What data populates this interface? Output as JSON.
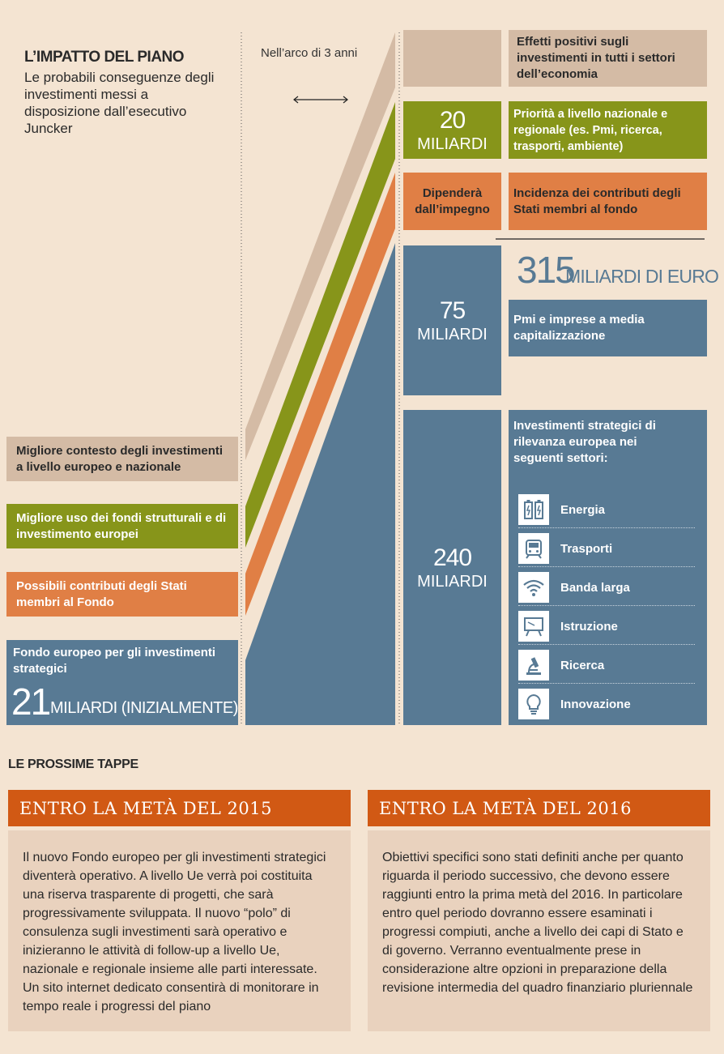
{
  "header": {
    "title": "L’IMPATTO DEL PIANO",
    "subtitle": "Le probabili conseguenze degli investimenti messi a disposizione dall’esecutivo Juncker",
    "timespan": "Nell’arco di 3 anni"
  },
  "left_boxes": {
    "tan": "Migliore contesto degli investimenti a livello europeo e nazionale",
    "olive": "Migliore uso dei fondi strutturali e di investimento europei",
    "orange": "Possibili contributi degli Stati membri al Fondo",
    "blue_title": "Fondo europeo per gli investimenti strategici",
    "blue_number": "21",
    "blue_unit": "MILIARDI (INIZIALMENTE)"
  },
  "middle_boxes": {
    "olive_number": "20",
    "olive_unit": "MILIARDI",
    "orange_text": "Dipenderà dall’impegno",
    "blue1_number": "75",
    "blue1_unit": "MILIARDI",
    "blue2_number": "240",
    "blue2_unit": "MILIARDI"
  },
  "right_boxes": {
    "tan": "Effetti positivi sugli investimenti in tutti i settori dell’economia",
    "olive": "Priorità a livello nazionale e regionale (es. Pmi, ricerca, trasporti, ambiente)",
    "orange": "Incidenza dei contributi degli Stati membri al fondo",
    "total_number": "315",
    "total_unit": "MILIARDI DI EURO",
    "blue1": "Pmi e imprese a media capitalizzazione",
    "blue2_intro": "Investimenti strategici di rilevanza europea nei seguenti settori:"
  },
  "sectors": [
    {
      "label": "Energia",
      "icon": "battery-icon"
    },
    {
      "label": "Trasporti",
      "icon": "train-icon"
    },
    {
      "label": "Banda larga",
      "icon": "wifi-icon"
    },
    {
      "label": "Istruzione",
      "icon": "blackboard-icon"
    },
    {
      "label": "Ricerca",
      "icon": "microscope-icon"
    },
    {
      "label": "Innovazione",
      "icon": "lightbulb-icon"
    }
  ],
  "steps": {
    "section_title": "LE PROSSIME TAPPE",
    "step1_title": "ENTRO LA METÀ DEL 2015",
    "step1_text": "Il nuovo Fondo europeo per gli investimenti strategici diventerà operativo. A livello Ue verrà poi costituita una riserva trasparente di progetti, che sarà progressivamente sviluppata. Il nuovo “polo” di consulenza sugli investimenti sarà operativo e inizieranno le attività di follow-up a livello Ue, nazionale e regionale insieme alle parti interessate. Un sito internet dedicato consentirà di monitorare in tempo reale i progressi del piano",
    "step2_title": "ENTRO LA METÀ DEL 2016",
    "step2_text": "Obiettivi specifici sono stati definiti anche per quanto riguarda il periodo successivo, che devono essere raggiunti entro la prima metà del 2016. In particolare entro quel periodo dovranno essere esaminati i progressi compiuti, anche a livello dei capi di Stato e di governo. Verranno eventualmente prese in considerazione altre opzioni in preparazione della revisione intermedia del quadro finanziario pluriennale"
  },
  "colors": {
    "tan": "#d4bba5",
    "olive": "#87951a",
    "orange": "#e07f45",
    "blue": "#587a94",
    "step_header": "#d15914",
    "background": "#f4e4d2"
  }
}
